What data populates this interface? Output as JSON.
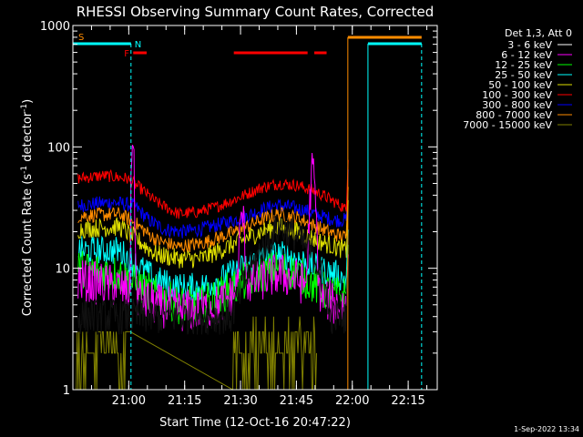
{
  "chart_data": {
    "type": "line",
    "title": "RHESSI Observing Summary Count Rates, Corrected",
    "ylabel": "Corrected Count Rate (s",
    "ylabel_sup1": "-1",
    "ylabel_mid": " detector",
    "ylabel_sup2": "-1",
    "ylabel_end": ")",
    "xlabel": "Start Time (12-Oct-16 20:47:22)",
    "footer": "1-Sep-2022 13:34",
    "yscale": "log",
    "ylim": [
      1,
      1000
    ],
    "xlim_minutes": [
      -2.4,
      95.4
    ],
    "y_ticks": [
      {
        "v": 1,
        "label": "1"
      },
      {
        "v": 10,
        "label": "10"
      },
      {
        "v": 100,
        "label": "100"
      },
      {
        "v": 1000,
        "label": "1000"
      }
    ],
    "x_ticks": [
      {
        "t": 12.6,
        "label": "21:00"
      },
      {
        "t": 27.6,
        "label": "21:15"
      },
      {
        "t": 42.6,
        "label": "21:30"
      },
      {
        "t": 57.6,
        "label": "21:45"
      },
      {
        "t": 72.6,
        "label": "22:00"
      },
      {
        "t": 87.6,
        "label": "22:15"
      }
    ],
    "legend": {
      "header": "Det 1,3, Att 0",
      "entries": [
        {
          "label": "3 - 6 keV",
          "color": "#000000"
        },
        {
          "label": "6 - 12 keV",
          "color": "#ff00ff"
        },
        {
          "label": "12 - 25 keV",
          "color": "#00ff00"
        },
        {
          "label": "25 - 50 keV",
          "color": "#00ffff"
        },
        {
          "label": "50 - 100 keV",
          "color": "#e0e000"
        },
        {
          "label": "100 - 300 keV",
          "color": "#ff0000"
        },
        {
          "label": "300 - 800 keV",
          "color": "#0000ff"
        },
        {
          "label": "800 - 7000 keV",
          "color": "#ff8c00"
        },
        {
          "label": "7000 - 15000 keV",
          "color": "#808000"
        }
      ]
    },
    "series": [
      {
        "name": "300 - 800 keV",
        "color": "#0000ff",
        "base": [
          [
            -1,
            33
          ],
          [
            8,
            35
          ],
          [
            14,
            33
          ],
          [
            18,
            25
          ],
          [
            22,
            21
          ],
          [
            27,
            20
          ],
          [
            32,
            21
          ],
          [
            37,
            23
          ],
          [
            43,
            26
          ],
          [
            48,
            30
          ],
          [
            52,
            33
          ],
          [
            56,
            32
          ],
          [
            60,
            30
          ],
          [
            64,
            27
          ],
          [
            68,
            25
          ],
          [
            71,
            25
          ]
        ],
        "noise": 0.06
      },
      {
        "name": "100 - 300 keV",
        "color": "#ff0000",
        "base": [
          [
            -1,
            55
          ],
          [
            6,
            58
          ],
          [
            12,
            55
          ],
          [
            16,
            45
          ],
          [
            20,
            35
          ],
          [
            26,
            28
          ],
          [
            31,
            29
          ],
          [
            36,
            32
          ],
          [
            42,
            38
          ],
          [
            48,
            46
          ],
          [
            53,
            50
          ],
          [
            58,
            48
          ],
          [
            62,
            44
          ],
          [
            66,
            38
          ],
          [
            70,
            32
          ],
          [
            71,
            30
          ]
        ],
        "noise": 0.05
      },
      {
        "name": "800 - 7000 keV",
        "color": "#ff8c00",
        "base": [
          [
            -1,
            27
          ],
          [
            10,
            28
          ],
          [
            14,
            24
          ],
          [
            20,
            17
          ],
          [
            26,
            15
          ],
          [
            32,
            16
          ],
          [
            37,
            18
          ],
          [
            43,
            21
          ],
          [
            48,
            25
          ],
          [
            53,
            28
          ],
          [
            58,
            26
          ],
          [
            63,
            22
          ],
          [
            68,
            19
          ],
          [
            71,
            18
          ]
        ],
        "noise": 0.06
      },
      {
        "name": "50 - 100 keV",
        "color": "#e0e000",
        "base": [
          [
            -1,
            21
          ],
          [
            10,
            22
          ],
          [
            14,
            18
          ],
          [
            20,
            13
          ],
          [
            26,
            12
          ],
          [
            32,
            12
          ],
          [
            37,
            14
          ],
          [
            43,
            17
          ],
          [
            48,
            20
          ],
          [
            53,
            22
          ],
          [
            58,
            20
          ],
          [
            63,
            17
          ],
          [
            68,
            15
          ],
          [
            71,
            14
          ]
        ],
        "noise": 0.08
      },
      {
        "name": "25 - 50 keV",
        "color": "#00ffff",
        "base": [
          [
            -1,
            14
          ],
          [
            10,
            14
          ],
          [
            14,
            11
          ],
          [
            20,
            8
          ],
          [
            26,
            7
          ],
          [
            32,
            7
          ],
          [
            37,
            8
          ],
          [
            43,
            10
          ],
          [
            48,
            12
          ],
          [
            53,
            13
          ],
          [
            58,
            12
          ],
          [
            63,
            10
          ],
          [
            68,
            9
          ],
          [
            71,
            8
          ]
        ],
        "noise": 0.12
      },
      {
        "name": "12 - 25 keV",
        "color": "#00ff00",
        "base": [
          [
            -1,
            10
          ],
          [
            10,
            9
          ],
          [
            14,
            7.5
          ],
          [
            20,
            6
          ],
          [
            26,
            5
          ],
          [
            32,
            5
          ],
          [
            37,
            6
          ],
          [
            43,
            7.5
          ],
          [
            48,
            9
          ],
          [
            53,
            10
          ],
          [
            58,
            9
          ],
          [
            63,
            7
          ],
          [
            68,
            6
          ],
          [
            71,
            6
          ]
        ],
        "noise": 0.16
      },
      {
        "name": "6 - 12 keV",
        "color": "#ff00ff",
        "base": [
          [
            -1,
            8
          ],
          [
            10,
            7
          ],
          [
            14,
            6
          ],
          [
            20,
            5
          ],
          [
            26,
            4.5
          ],
          [
            32,
            4.5
          ],
          [
            37,
            5
          ],
          [
            43,
            7
          ],
          [
            48,
            8
          ],
          [
            53,
            9
          ],
          [
            58,
            8
          ],
          [
            63,
            6
          ],
          [
            68,
            5
          ],
          [
            71,
            5
          ]
        ],
        "noise": 0.18
      },
      {
        "name": "3 - 6 keV",
        "color": "#000000",
        "base": [
          [
            -1,
            4
          ],
          [
            10,
            4
          ],
          [
            14,
            4
          ],
          [
            71,
            4
          ]
        ],
        "noise": 0.15
      }
    ],
    "bars": {
      "S": {
        "label": "S",
        "color": "#ff8c00",
        "t_end": 1.2
      },
      "N": {
        "label": "N",
        "color": "#00ffff",
        "segments": [
          [
            -2.4,
            13.2
          ],
          [
            76.8,
            91.2
          ]
        ]
      },
      "F": {
        "label": "F",
        "color": "#ff0000",
        "segments": [
          [
            13.8,
            17.4
          ],
          [
            40.8,
            60.6
          ],
          [
            62.4,
            65.7
          ]
        ]
      },
      "orange_top": {
        "color": "#ff8c00",
        "segments": [
          [
            71.4,
            91.2
          ]
        ]
      },
      "cyan_vlines": [
        -2.4,
        76.8,
        91.2
      ],
      "cyan_dashed": [
        13.2
      ],
      "orange_vline": [
        71.4
      ]
    }
  }
}
